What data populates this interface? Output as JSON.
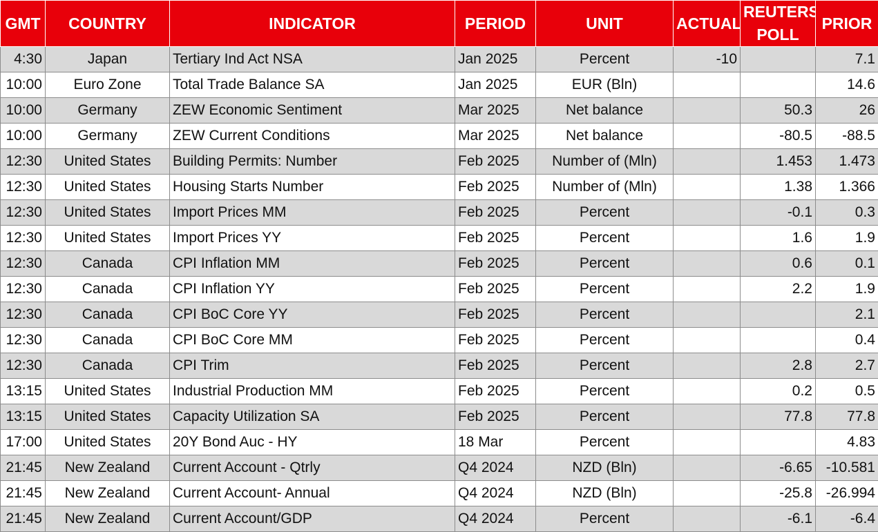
{
  "headers": {
    "gmt": "GMT",
    "country": "COUNTRY",
    "indicator": "INDICATOR",
    "period": "PERIOD",
    "unit": "UNIT",
    "actual": "ACTUAL",
    "reuters_poll_line1": "REUTERS",
    "reuters_poll_line2": "POLL",
    "prior": "PRIOR"
  },
  "rows": [
    {
      "gmt": "4:30",
      "country": "Japan",
      "indicator": "Tertiary Ind Act NSA",
      "period": "Jan 2025",
      "unit": "Percent",
      "actual": "-10",
      "poll": "",
      "prior": "7.1"
    },
    {
      "gmt": "10:00",
      "country": "Euro Zone",
      "indicator": "Total Trade Balance SA",
      "period": "Jan 2025",
      "unit": "EUR (Bln)",
      "actual": "",
      "poll": "",
      "prior": "14.6"
    },
    {
      "gmt": "10:00",
      "country": "Germany",
      "indicator": "ZEW Economic Sentiment",
      "period": "Mar 2025",
      "unit": "Net balance",
      "actual": "",
      "poll": "50.3",
      "prior": "26"
    },
    {
      "gmt": "10:00",
      "country": "Germany",
      "indicator": "ZEW Current Conditions",
      "period": "Mar 2025",
      "unit": "Net balance",
      "actual": "",
      "poll": "-80.5",
      "prior": "-88.5"
    },
    {
      "gmt": "12:30",
      "country": "United States",
      "indicator": "Building Permits: Number",
      "period": "Feb 2025",
      "unit": "Number of (Mln)",
      "actual": "",
      "poll": "1.453",
      "prior": "1.473"
    },
    {
      "gmt": "12:30",
      "country": "United States",
      "indicator": "Housing Starts Number",
      "period": "Feb 2025",
      "unit": "Number of (Mln)",
      "actual": "",
      "poll": "1.38",
      "prior": "1.366"
    },
    {
      "gmt": "12:30",
      "country": "United States",
      "indicator": "Import Prices MM",
      "period": "Feb 2025",
      "unit": "Percent",
      "actual": "",
      "poll": "-0.1",
      "prior": "0.3"
    },
    {
      "gmt": "12:30",
      "country": "United States",
      "indicator": "Import Prices YY",
      "period": "Feb 2025",
      "unit": "Percent",
      "actual": "",
      "poll": "1.6",
      "prior": "1.9"
    },
    {
      "gmt": "12:30",
      "country": "Canada",
      "indicator": "CPI Inflation MM",
      "period": "Feb 2025",
      "unit": "Percent",
      "actual": "",
      "poll": "0.6",
      "prior": "0.1"
    },
    {
      "gmt": "12:30",
      "country": "Canada",
      "indicator": "CPI Inflation YY",
      "period": "Feb 2025",
      "unit": "Percent",
      "actual": "",
      "poll": "2.2",
      "prior": "1.9"
    },
    {
      "gmt": "12:30",
      "country": "Canada",
      "indicator": "CPI BoC Core YY",
      "period": "Feb 2025",
      "unit": "Percent",
      "actual": "",
      "poll": "",
      "prior": "2.1"
    },
    {
      "gmt": "12:30",
      "country": "Canada",
      "indicator": "CPI BoC Core MM",
      "period": "Feb 2025",
      "unit": "Percent",
      "actual": "",
      "poll": "",
      "prior": "0.4"
    },
    {
      "gmt": "12:30",
      "country": "Canada",
      "indicator": "CPI Trim",
      "period": "Feb 2025",
      "unit": "Percent",
      "actual": "",
      "poll": "2.8",
      "prior": "2.7"
    },
    {
      "gmt": "13:15",
      "country": "United States",
      "indicator": "Industrial Production MM",
      "period": "Feb 2025",
      "unit": "Percent",
      "actual": "",
      "poll": "0.2",
      "prior": "0.5"
    },
    {
      "gmt": "13:15",
      "country": "United States",
      "indicator": "Capacity Utilization SA",
      "period": "Feb 2025",
      "unit": "Percent",
      "actual": "",
      "poll": "77.8",
      "prior": "77.8"
    },
    {
      "gmt": "17:00",
      "country": "United States",
      "indicator": "20Y Bond Auc - HY",
      "period": "18 Mar",
      "unit": "Percent",
      "actual": "",
      "poll": "",
      "prior": "4.83"
    },
    {
      "gmt": "21:45",
      "country": "New Zealand",
      "indicator": "Current Account - Qtrly",
      "period": "Q4 2024",
      "unit": "NZD (Bln)",
      "actual": "",
      "poll": "-6.65",
      "prior": "-10.581"
    },
    {
      "gmt": "21:45",
      "country": "New Zealand",
      "indicator": "Current Account- Annual",
      "period": "Q4 2024",
      "unit": "NZD (Bln)",
      "actual": "",
      "poll": "-25.8",
      "prior": "-26.994"
    },
    {
      "gmt": "21:45",
      "country": "New Zealand",
      "indicator": "Current Account/GDP",
      "period": "Q4 2024",
      "unit": "Percent",
      "actual": "",
      "poll": "-6.1",
      "prior": "-6.4"
    }
  ],
  "colors": {
    "header_bg": "#e8000a",
    "header_text": "#ffffff",
    "row_alt": "#d9d9d9",
    "row_plain": "#ffffff",
    "grid": "#8c8c8c"
  }
}
